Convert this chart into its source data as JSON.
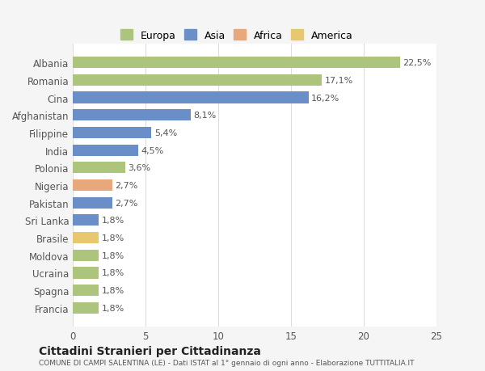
{
  "categories": [
    "Francia",
    "Spagna",
    "Ucraina",
    "Moldova",
    "Brasile",
    "Sri Lanka",
    "Pakistan",
    "Nigeria",
    "Polonia",
    "India",
    "Filippine",
    "Afghanistan",
    "Cina",
    "Romania",
    "Albania"
  ],
  "values": [
    1.8,
    1.8,
    1.8,
    1.8,
    1.8,
    1.8,
    2.7,
    2.7,
    3.6,
    4.5,
    5.4,
    8.1,
    16.2,
    17.1,
    22.5
  ],
  "labels": [
    "1,8%",
    "1,8%",
    "1,8%",
    "1,8%",
    "1,8%",
    "1,8%",
    "2,7%",
    "2,7%",
    "3,6%",
    "4,5%",
    "5,4%",
    "8,1%",
    "16,2%",
    "17,1%",
    "22,5%"
  ],
  "colors": [
    "#adc47d",
    "#adc47d",
    "#adc47d",
    "#adc47d",
    "#e8c86e",
    "#6a8fc8",
    "#6a8fc8",
    "#e8a87c",
    "#adc47d",
    "#6a8fc8",
    "#6a8fc8",
    "#6a8fc8",
    "#6a8fc8",
    "#adc47d",
    "#adc47d"
  ],
  "legend": [
    {
      "label": "Europa",
      "color": "#adc47d"
    },
    {
      "label": "Asia",
      "color": "#6a8fc8"
    },
    {
      "label": "Africa",
      "color": "#e8a87c"
    },
    {
      "label": "America",
      "color": "#e8c86e"
    }
  ],
  "xlim": [
    0,
    25
  ],
  "xticks": [
    0,
    5,
    10,
    15,
    20,
    25
  ],
  "title": "Cittadini Stranieri per Cittadinanza",
  "subtitle": "COMUNE DI CAMPI SALENTINA (LE) - Dati ISTAT al 1° gennaio di ogni anno - Elaborazione TUTTITALIA.IT",
  "bg_color": "#f5f5f5",
  "bar_bg_color": "#ffffff",
  "label_color": "#555555",
  "grid_color": "#dddddd"
}
